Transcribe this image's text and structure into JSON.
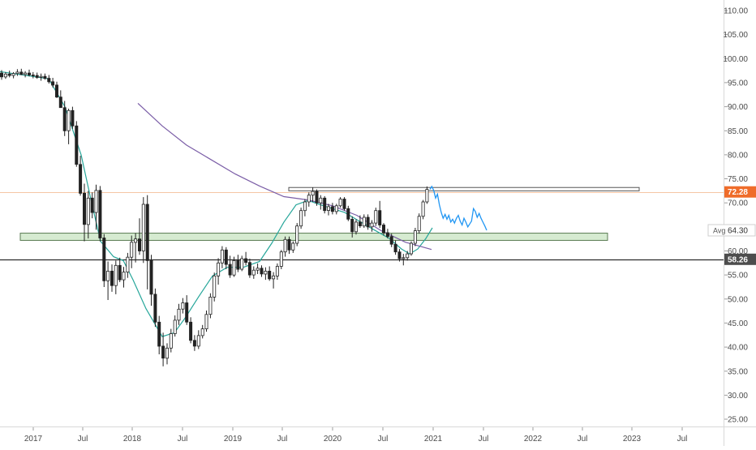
{
  "chart_data": {
    "type": "candlestick",
    "price_scale": {
      "position": "right",
      "ylim": [
        22,
        113
      ]
    },
    "y_ticks": [
      "110.00",
      "105.00",
      "100.00",
      "95.00",
      "90.00",
      "85.00",
      "80.00",
      "75.00",
      "70.00",
      "65.00",
      "60.00",
      "55.00",
      "50.00",
      "45.00",
      "40.00",
      "35.00",
      "30.00",
      "25.00"
    ],
    "x_ticks": [
      "2017",
      "Jul",
      "2018",
      "Jul",
      "2019",
      "Jul",
      "2020",
      "Jul",
      "2021",
      "Jul",
      "2022",
      "Jul",
      "2023",
      "Jul"
    ],
    "badges": [
      {
        "label": "72.28",
        "value": 72.28,
        "color": "#ef6c2a",
        "line_color": "#f5c6a5"
      },
      {
        "label": "58.26",
        "value": 58.26,
        "color": "#4d4d4d",
        "line_color": "#2b2b2b"
      }
    ],
    "avg_label": {
      "text": "Avg",
      "value_text": "64.30",
      "value": 64.3
    },
    "candles_ohlc": [
      [
        97.0,
        97.6,
        95.6,
        96.2
      ],
      [
        96.2,
        97.2,
        95.8,
        96.8
      ],
      [
        96.8,
        97.5,
        96.1,
        96.5
      ],
      [
        96.5,
        97.2,
        95.9,
        96.9
      ],
      [
        96.9,
        97.8,
        96.4,
        97.2
      ],
      [
        97.2,
        97.9,
        96.6,
        96.7
      ],
      [
        96.7,
        97.4,
        96.1,
        97.0
      ],
      [
        97.0,
        97.7,
        96.3,
        96.6
      ],
      [
        96.6,
        97.2,
        95.9,
        96.5
      ],
      [
        96.5,
        97.1,
        95.8,
        96.1
      ],
      [
        96.1,
        96.9,
        95.4,
        96.3
      ],
      [
        96.3,
        96.9,
        95.6,
        95.9
      ],
      [
        95.9,
        96.6,
        94.8,
        95.2
      ],
      [
        95.2,
        96.0,
        94.0,
        94.5
      ],
      [
        94.5,
        95.2,
        91.8,
        92.0
      ],
      [
        92.0,
        93.4,
        90.4,
        89.8
      ],
      [
        89.8,
        91.2,
        83.9,
        85.0
      ],
      [
        85.0,
        89.6,
        82.2,
        89.2
      ],
      [
        89.2,
        90.0,
        85.4,
        86.0
      ],
      [
        86.0,
        87.0,
        77.5,
        78.0
      ],
      [
        78.0,
        79.8,
        71.5,
        72.0
      ],
      [
        72.0,
        74.0,
        62.0,
        65.5
      ],
      [
        65.5,
        72.5,
        62.6,
        71.0
      ],
      [
        71.0,
        72.2,
        66.8,
        68.0
      ],
      [
        68.0,
        73.8,
        64.4,
        72.6
      ],
      [
        72.6,
        73.5,
        62.0,
        62.7
      ],
      [
        62.7,
        63.5,
        52.5,
        53.8
      ],
      [
        53.8,
        57.8,
        49.8,
        55.8
      ],
      [
        55.8,
        57.2,
        51.5,
        52.8
      ],
      [
        52.8,
        58.0,
        51.0,
        57.0
      ],
      [
        57.0,
        58.6,
        53.5,
        54.0
      ],
      [
        54.0,
        56.7,
        52.4,
        55.6
      ],
      [
        55.6,
        59.6,
        54.4,
        58.7
      ],
      [
        58.7,
        63.2,
        56.4,
        61.8
      ],
      [
        61.8,
        63.7,
        57.6,
        62.5
      ],
      [
        62.5,
        66.8,
        59.2,
        60.0
      ],
      [
        60.0,
        71.2,
        57.5,
        69.7
      ],
      [
        69.7,
        71.6,
        52.0,
        58.0
      ],
      [
        58.0,
        59.2,
        48.6,
        51.0
      ],
      [
        51.0,
        52.2,
        44.2,
        45.2
      ],
      [
        45.2,
        46.5,
        38.5,
        40.2
      ],
      [
        40.2,
        43.0,
        36.0,
        37.7
      ],
      [
        37.7,
        40.8,
        36.4,
        39.8
      ],
      [
        39.8,
        43.8,
        38.9,
        42.8
      ],
      [
        42.8,
        46.6,
        42.2,
        45.6
      ],
      [
        45.6,
        49.0,
        44.6,
        47.9
      ],
      [
        47.9,
        50.2,
        47.0,
        49.2
      ],
      [
        49.2,
        50.8,
        44.6,
        45.2
      ],
      [
        45.2,
        46.2,
        40.8,
        41.4
      ],
      [
        41.4,
        42.5,
        39.2,
        40.2
      ],
      [
        40.2,
        43.5,
        39.6,
        42.4
      ],
      [
        42.4,
        44.6,
        41.8,
        43.8
      ],
      [
        43.8,
        47.6,
        43.2,
        46.8
      ],
      [
        46.8,
        51.2,
        46.0,
        50.4
      ],
      [
        50.4,
        55.5,
        49.5,
        54.8
      ],
      [
        54.8,
        58.5,
        53.0,
        57.5
      ],
      [
        57.5,
        61.0,
        56.4,
        60.2
      ],
      [
        60.2,
        60.8,
        56.2,
        57.2
      ],
      [
        57.2,
        59.0,
        54.4,
        55.0
      ],
      [
        55.0,
        58.8,
        54.6,
        58.0
      ],
      [
        58.0,
        59.2,
        55.6,
        56.2
      ],
      [
        56.2,
        59.0,
        55.8,
        58.4
      ],
      [
        58.4,
        59.8,
        57.0,
        57.6
      ],
      [
        57.6,
        58.4,
        54.4,
        55.0
      ],
      [
        55.0,
        56.8,
        54.2,
        56.0
      ],
      [
        56.0,
        57.4,
        55.2,
        56.4
      ],
      [
        56.4,
        57.0,
        54.6,
        55.2
      ],
      [
        55.2,
        56.6,
        54.0,
        55.8
      ],
      [
        55.8,
        56.8,
        53.8,
        54.2
      ],
      [
        54.2,
        55.6,
        52.2,
        54.8
      ],
      [
        54.8,
        57.4,
        54.0,
        56.8
      ],
      [
        56.8,
        60.2,
        56.2,
        59.8
      ],
      [
        59.8,
        63.0,
        58.8,
        62.4
      ],
      [
        62.4,
        63.0,
        59.4,
        60.2
      ],
      [
        60.2,
        62.0,
        59.6,
        61.6
      ],
      [
        61.6,
        65.8,
        61.0,
        65.2
      ],
      [
        65.2,
        69.0,
        64.6,
        68.4
      ],
      [
        68.4,
        70.8,
        67.2,
        70.2
      ],
      [
        70.2,
        72.2,
        69.2,
        71.6
      ],
      [
        71.6,
        73.2,
        70.2,
        72.4
      ],
      [
        72.4,
        72.8,
        69.4,
        70.0
      ],
      [
        70.0,
        71.6,
        68.6,
        71.0
      ],
      [
        71.0,
        71.4,
        67.8,
        68.4
      ],
      [
        68.4,
        69.8,
        67.4,
        69.2
      ],
      [
        69.2,
        70.0,
        67.6,
        68.2
      ],
      [
        68.2,
        69.8,
        67.6,
        69.4
      ],
      [
        69.4,
        71.2,
        69.0,
        70.8
      ],
      [
        70.8,
        71.2,
        68.4,
        68.8
      ],
      [
        68.8,
        69.4,
        66.2,
        66.6
      ],
      [
        66.6,
        67.2,
        62.8,
        64.0
      ],
      [
        64.0,
        66.6,
        63.4,
        66.0
      ],
      [
        66.0,
        67.4,
        64.8,
        65.2
      ],
      [
        65.2,
        67.6,
        64.8,
        67.0
      ],
      [
        67.0,
        67.6,
        64.4,
        65.0
      ],
      [
        65.0,
        66.4,
        64.0,
        65.8
      ],
      [
        65.8,
        69.0,
        65.2,
        68.4
      ],
      [
        68.4,
        70.4,
        64.8,
        65.4
      ],
      [
        65.4,
        65.8,
        63.2,
        63.8
      ],
      [
        63.8,
        64.6,
        62.6,
        63.0
      ],
      [
        63.0,
        63.6,
        60.8,
        61.4
      ],
      [
        61.4,
        62.2,
        59.2,
        59.8
      ],
      [
        59.8,
        60.4,
        57.8,
        58.4
      ],
      [
        58.4,
        59.4,
        57.0,
        58.6
      ],
      [
        58.6,
        60.0,
        58.0,
        59.4
      ],
      [
        59.4,
        62.0,
        59.0,
        61.6
      ],
      [
        61.6,
        64.8,
        61.0,
        64.2
      ],
      [
        64.2,
        67.8,
        63.6,
        67.2
      ],
      [
        67.2,
        70.6,
        66.6,
        70.2
      ],
      [
        70.2,
        73.4,
        69.8,
        72.8
      ]
    ],
    "line_series": [
      {
        "name": "",
        "color": "#2196f3",
        "values": [
          72.8,
          73.4,
          72.6,
          71.0,
          71.8,
          69.6,
          68.0,
          66.8,
          67.6,
          66.6,
          67.4,
          66.0,
          66.6,
          65.8,
          66.8,
          67.4,
          66.2,
          65.4,
          66.8,
          66.0,
          65.0,
          65.6,
          66.2,
          68.8,
          68.2,
          67.0,
          67.8,
          66.8,
          66.0,
          65.2,
          64.3
        ]
      }
    ],
    "ma_teal": [
      [
        0,
        97.3
      ],
      [
        60,
        95.8
      ],
      [
        80,
        90
      ],
      [
        100,
        80
      ],
      [
        113,
        70
      ],
      [
        124,
        62
      ],
      [
        140,
        58.8
      ],
      [
        152,
        58
      ],
      [
        164,
        54
      ],
      [
        180,
        48
      ],
      [
        200,
        42.2
      ],
      [
        215,
        43
      ],
      [
        228,
        46
      ],
      [
        245,
        50.5
      ],
      [
        262,
        54.8
      ],
      [
        280,
        56.6
      ],
      [
        300,
        56.6
      ],
      [
        320,
        57.8
      ],
      [
        335,
        61.6
      ],
      [
        350,
        66
      ],
      [
        365,
        69.6
      ],
      [
        380,
        70.5
      ],
      [
        395,
        69.6
      ],
      [
        410,
        68.8
      ],
      [
        425,
        68
      ],
      [
        440,
        66.5
      ],
      [
        460,
        64.5
      ],
      [
        480,
        62.6
      ],
      [
        495,
        60.4
      ],
      [
        505,
        59.4
      ],
      [
        515,
        60.4
      ],
      [
        525,
        62.6
      ],
      [
        533,
        64.8
      ]
    ],
    "ma_purple": [
      [
        170,
        90.7
      ],
      [
        200,
        86
      ],
      [
        230,
        82
      ],
      [
        260,
        79
      ],
      [
        290,
        76
      ],
      [
        320,
        73.5
      ],
      [
        350,
        71.3
      ],
      [
        380,
        70.6
      ],
      [
        410,
        69.4
      ],
      [
        440,
        67.4
      ],
      [
        470,
        64.2
      ],
      [
        500,
        61.8
      ],
      [
        532,
        60.3
      ]
    ],
    "zones": [
      {
        "from": 72.5,
        "to": 73.2,
        "x_start": 356,
        "x_end": 788,
        "fill": "#ffffff",
        "stroke": "#555555"
      },
      {
        "from": 62.2,
        "to": 63.7,
        "x_start": 25,
        "x_end": 749,
        "fill": "#d6ebd1",
        "stroke": "#5a7a52"
      }
    ]
  }
}
